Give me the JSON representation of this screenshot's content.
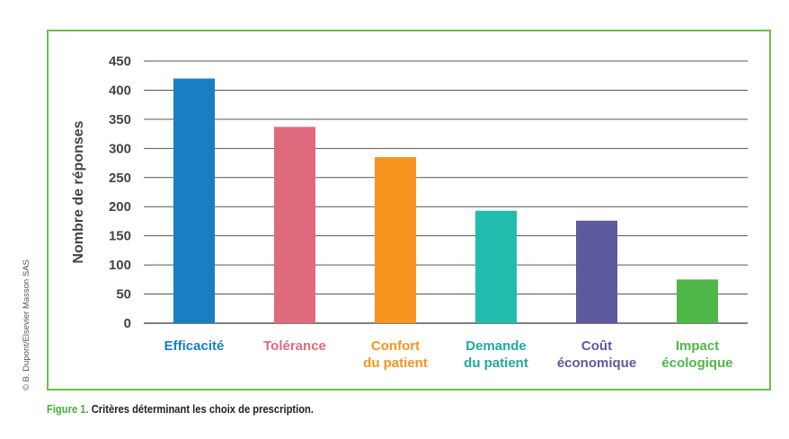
{
  "caption": {
    "label": "Figure 1.",
    "text": "Critères déterminant les choix de prescription."
  },
  "copyright": "© B. Dupont/Elsevier Masson SAS",
  "colors": {
    "frame": "#6cc04a",
    "grid": "#555555",
    "caption_label": "#4bab3c"
  },
  "chart_data": {
    "type": "bar",
    "title": "",
    "xlabel": "",
    "ylabel": "Nombre de réponses",
    "ylim": [
      0,
      450
    ],
    "yticks": [
      0,
      50,
      100,
      150,
      200,
      250,
      300,
      350,
      400,
      450
    ],
    "grid": true,
    "categories": [
      [
        "Efficacité"
      ],
      [
        "Tolérance"
      ],
      [
        "Confort",
        "du patient"
      ],
      [
        "Demande",
        "du patient"
      ],
      [
        "Coût",
        "économique"
      ],
      [
        "Impact",
        "écologique"
      ]
    ],
    "values": [
      420,
      337,
      285,
      193,
      176,
      75
    ],
    "bar_colors": [
      "#1a7ec2",
      "#e06a7d",
      "#f7941d",
      "#21bcad",
      "#5d5aa0",
      "#4fb748"
    ],
    "label_colors": [
      "#1a7ec2",
      "#e06a7d",
      "#f7941d",
      "#21a99b",
      "#5d5aa0",
      "#4fb748"
    ]
  }
}
